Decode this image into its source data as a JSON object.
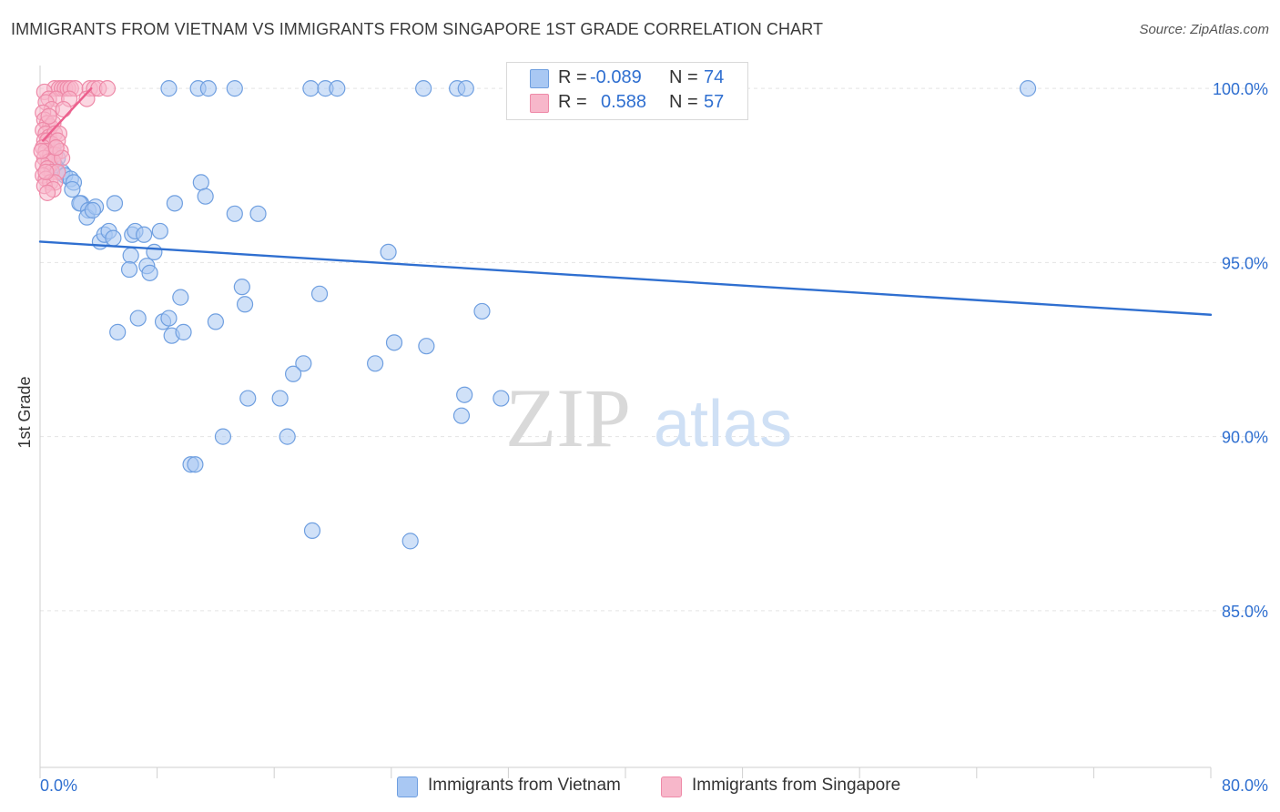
{
  "title": "IMMIGRANTS FROM VIETNAM VS IMMIGRANTS FROM SINGAPORE 1ST GRADE CORRELATION CHART",
  "source": "Source: ZipAtlas.com",
  "watermark": {
    "zip": "ZIP",
    "atlas": "atlas"
  },
  "stats": {
    "vietnam": {
      "r_label": "R =",
      "r": "-0.089",
      "n_label": "N =",
      "n": "74"
    },
    "singapore": {
      "r_label": "R =",
      "r": "0.588",
      "n_label": "N =",
      "n": "57"
    }
  },
  "legend": {
    "vietnam": "Immigrants from Vietnam",
    "singapore": "Immigrants from Singapore"
  },
  "colors": {
    "vietnam_fill": "#a9c8f3",
    "vietnam_stroke": "#6f9fe0",
    "vietnam_line": "#2f6fd0",
    "singapore_fill": "#f7b7ca",
    "singapore_stroke": "#ee8aa8",
    "singapore_line": "#ec5f8d",
    "tick_label": "#2f6fd0",
    "grid": "#e4e4e4"
  },
  "chart_data": {
    "type": "scatter",
    "title": "IMMIGRANTS FROM VIETNAM VS IMMIGRANTS FROM SINGAPORE 1ST GRADE CORRELATION CHART",
    "xlabel": "",
    "ylabel": "1st Grade",
    "xlim": [
      0,
      80
    ],
    "ylim": [
      80.5,
      100.5
    ],
    "x_tick_labels": {
      "left": "0.0%",
      "right": "80.0%"
    },
    "x_minor_ticks": [
      0,
      8,
      16,
      24,
      32,
      40,
      48,
      56,
      64,
      72,
      80
    ],
    "y_ticks": [
      {
        "value": 85,
        "label": "85.0%"
      },
      {
        "value": 90,
        "label": "90.0%"
      },
      {
        "value": 95,
        "label": "95.0%"
      },
      {
        "value": 100,
        "label": "100.0%"
      }
    ],
    "grid": true,
    "series": [
      {
        "name": "Immigrants from Vietnam",
        "R": -0.089,
        "N": 74,
        "trend": [
          [
            0,
            95.6
          ],
          [
            80,
            93.5
          ]
        ],
        "points": [
          [
            8.8,
            100.0
          ],
          [
            10.8,
            100.0
          ],
          [
            11.5,
            100.0
          ],
          [
            13.3,
            100.0
          ],
          [
            18.5,
            100.0
          ],
          [
            19.5,
            100.0
          ],
          [
            20.3,
            100.0
          ],
          [
            26.2,
            100.0
          ],
          [
            28.5,
            100.0
          ],
          [
            67.5,
            100.0
          ],
          [
            0.9,
            98.3
          ],
          [
            1.2,
            98.0
          ],
          [
            1.0,
            97.8
          ],
          [
            1.5,
            97.6
          ],
          [
            1.7,
            97.5
          ],
          [
            2.1,
            97.4
          ],
          [
            2.3,
            97.3
          ],
          [
            2.2,
            97.1
          ],
          [
            2.8,
            96.7
          ],
          [
            2.7,
            96.7
          ],
          [
            3.3,
            96.5
          ],
          [
            3.2,
            96.3
          ],
          [
            3.8,
            96.6
          ],
          [
            3.6,
            96.5
          ],
          [
            5.1,
            96.7
          ],
          [
            9.2,
            96.7
          ],
          [
            11.0,
            97.3
          ],
          [
            11.3,
            96.9
          ],
          [
            13.3,
            96.4
          ],
          [
            14.9,
            96.4
          ],
          [
            4.1,
            95.6
          ],
          [
            4.4,
            95.8
          ],
          [
            4.7,
            95.9
          ],
          [
            5.0,
            95.7
          ],
          [
            6.3,
            95.8
          ],
          [
            6.5,
            95.9
          ],
          [
            7.1,
            95.8
          ],
          [
            8.2,
            95.9
          ],
          [
            6.2,
            95.2
          ],
          [
            7.8,
            95.3
          ],
          [
            6.1,
            94.8
          ],
          [
            7.3,
            94.9
          ],
          [
            7.5,
            94.7
          ],
          [
            23.8,
            95.3
          ],
          [
            13.8,
            94.3
          ],
          [
            19.1,
            94.1
          ],
          [
            9.6,
            94.0
          ],
          [
            14.0,
            93.8
          ],
          [
            30.2,
            93.6
          ],
          [
            6.7,
            93.4
          ],
          [
            8.4,
            93.3
          ],
          [
            8.8,
            93.4
          ],
          [
            12.0,
            93.3
          ],
          [
            5.3,
            93.0
          ],
          [
            9.0,
            92.9
          ],
          [
            9.8,
            93.0
          ],
          [
            24.2,
            92.7
          ],
          [
            26.4,
            92.6
          ],
          [
            18.0,
            92.1
          ],
          [
            17.3,
            91.8
          ],
          [
            22.9,
            92.1
          ],
          [
            14.2,
            91.1
          ],
          [
            16.4,
            91.1
          ],
          [
            29.0,
            91.2
          ],
          [
            31.5,
            91.1
          ],
          [
            28.8,
            90.6
          ],
          [
            12.5,
            90.0
          ],
          [
            16.9,
            90.0
          ],
          [
            10.3,
            89.2
          ],
          [
            10.6,
            89.2
          ],
          [
            18.6,
            87.3
          ],
          [
            25.3,
            87.0
          ],
          [
            29.1,
            100.0
          ],
          [
            0.7,
            97.8
          ]
        ]
      },
      {
        "name": "Immigrants from Singapore",
        "R": 0.588,
        "N": 57,
        "trend": [
          [
            0.2,
            98.5
          ],
          [
            3.5,
            100.0
          ]
        ],
        "points": [
          [
            1.0,
            100.0
          ],
          [
            1.3,
            100.0
          ],
          [
            1.5,
            100.0
          ],
          [
            1.7,
            100.0
          ],
          [
            1.9,
            100.0
          ],
          [
            2.1,
            100.0
          ],
          [
            2.4,
            100.0
          ],
          [
            3.4,
            100.0
          ],
          [
            3.7,
            100.0
          ],
          [
            4.0,
            100.0
          ],
          [
            4.6,
            100.0
          ],
          [
            0.3,
            99.9
          ],
          [
            0.6,
            99.7
          ],
          [
            1.1,
            99.7
          ],
          [
            2.0,
            99.7
          ],
          [
            3.2,
            99.7
          ],
          [
            0.4,
            99.6
          ],
          [
            0.8,
            99.4
          ],
          [
            0.2,
            99.3
          ],
          [
            1.6,
            99.4
          ],
          [
            0.3,
            99.1
          ],
          [
            0.5,
            99.0
          ],
          [
            0.7,
            98.9
          ],
          [
            0.9,
            99.0
          ],
          [
            0.2,
            98.8
          ],
          [
            0.4,
            98.7
          ],
          [
            0.6,
            98.6
          ],
          [
            1.0,
            98.7
          ],
          [
            1.3,
            98.7
          ],
          [
            0.3,
            98.5
          ],
          [
            0.5,
            98.5
          ],
          [
            0.8,
            98.4
          ],
          [
            1.2,
            98.5
          ],
          [
            0.2,
            98.3
          ],
          [
            0.4,
            98.2
          ],
          [
            0.7,
            98.1
          ],
          [
            1.0,
            98.1
          ],
          [
            1.4,
            98.2
          ],
          [
            0.3,
            98.0
          ],
          [
            0.6,
            97.9
          ],
          [
            0.9,
            97.9
          ],
          [
            1.5,
            98.0
          ],
          [
            0.2,
            97.8
          ],
          [
            0.5,
            97.7
          ],
          [
            0.8,
            97.6
          ],
          [
            1.2,
            97.6
          ],
          [
            0.2,
            97.5
          ],
          [
            0.4,
            97.4
          ],
          [
            0.7,
            97.3
          ],
          [
            1.0,
            97.3
          ],
          [
            0.3,
            97.2
          ],
          [
            0.9,
            97.1
          ],
          [
            0.5,
            97.0
          ],
          [
            0.1,
            98.2
          ],
          [
            0.6,
            99.2
          ],
          [
            1.1,
            98.3
          ],
          [
            0.4,
            97.6
          ]
        ]
      }
    ]
  }
}
